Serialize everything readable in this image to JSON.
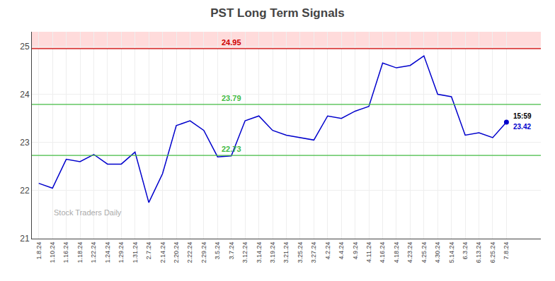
{
  "chart_data": {
    "type": "line",
    "title": "PST Long Term Signals",
    "watermark": "Stock Traders Daily",
    "categories": [
      "1.8.24",
      "1.10.24",
      "1.16.24",
      "1.18.24",
      "1.22.24",
      "1.24.24",
      "1.29.24",
      "1.31.24",
      "2.7.24",
      "2.14.24",
      "2.20.24",
      "2.22.24",
      "2.29.24",
      "3.5.24",
      "3.7.24",
      "3.12.24",
      "3.14.24",
      "3.19.24",
      "3.21.24",
      "3.25.24",
      "3.27.24",
      "4.2.24",
      "4.4.24",
      "4.9.24",
      "4.11.24",
      "4.16.24",
      "4.18.24",
      "4.23.24",
      "4.25.24",
      "4.30.24",
      "5.14.24",
      "6.3.24",
      "6.13.24",
      "6.25.24",
      "7.8.24"
    ],
    "values": [
      22.15,
      22.05,
      22.65,
      22.6,
      22.75,
      22.55,
      22.55,
      22.8,
      21.75,
      22.35,
      23.35,
      23.45,
      23.25,
      22.7,
      22.72,
      23.45,
      23.55,
      23.25,
      23.15,
      23.1,
      23.05,
      23.55,
      23.5,
      23.65,
      23.75,
      24.65,
      24.55,
      24.6,
      24.8,
      24.0,
      23.95,
      23.15,
      23.2,
      23.1,
      23.42
    ],
    "color": "#0000cc",
    "ylim": [
      21,
      25.3
    ],
    "yticks": [
      21,
      22,
      23,
      24,
      25
    ],
    "grid": true,
    "lines": [
      {
        "value": 24.95,
        "label": "24.95",
        "color": "#cc0000",
        "band_color": "#ffcccc"
      },
      {
        "value": 23.79,
        "label": "23.79",
        "color": "#44bb44"
      },
      {
        "value": 22.73,
        "label": "22.73",
        "color": "#44bb44"
      }
    ],
    "last_point": {
      "value": 23.42,
      "time": "15:59",
      "label": "23.42",
      "color": "#0000cc"
    }
  }
}
